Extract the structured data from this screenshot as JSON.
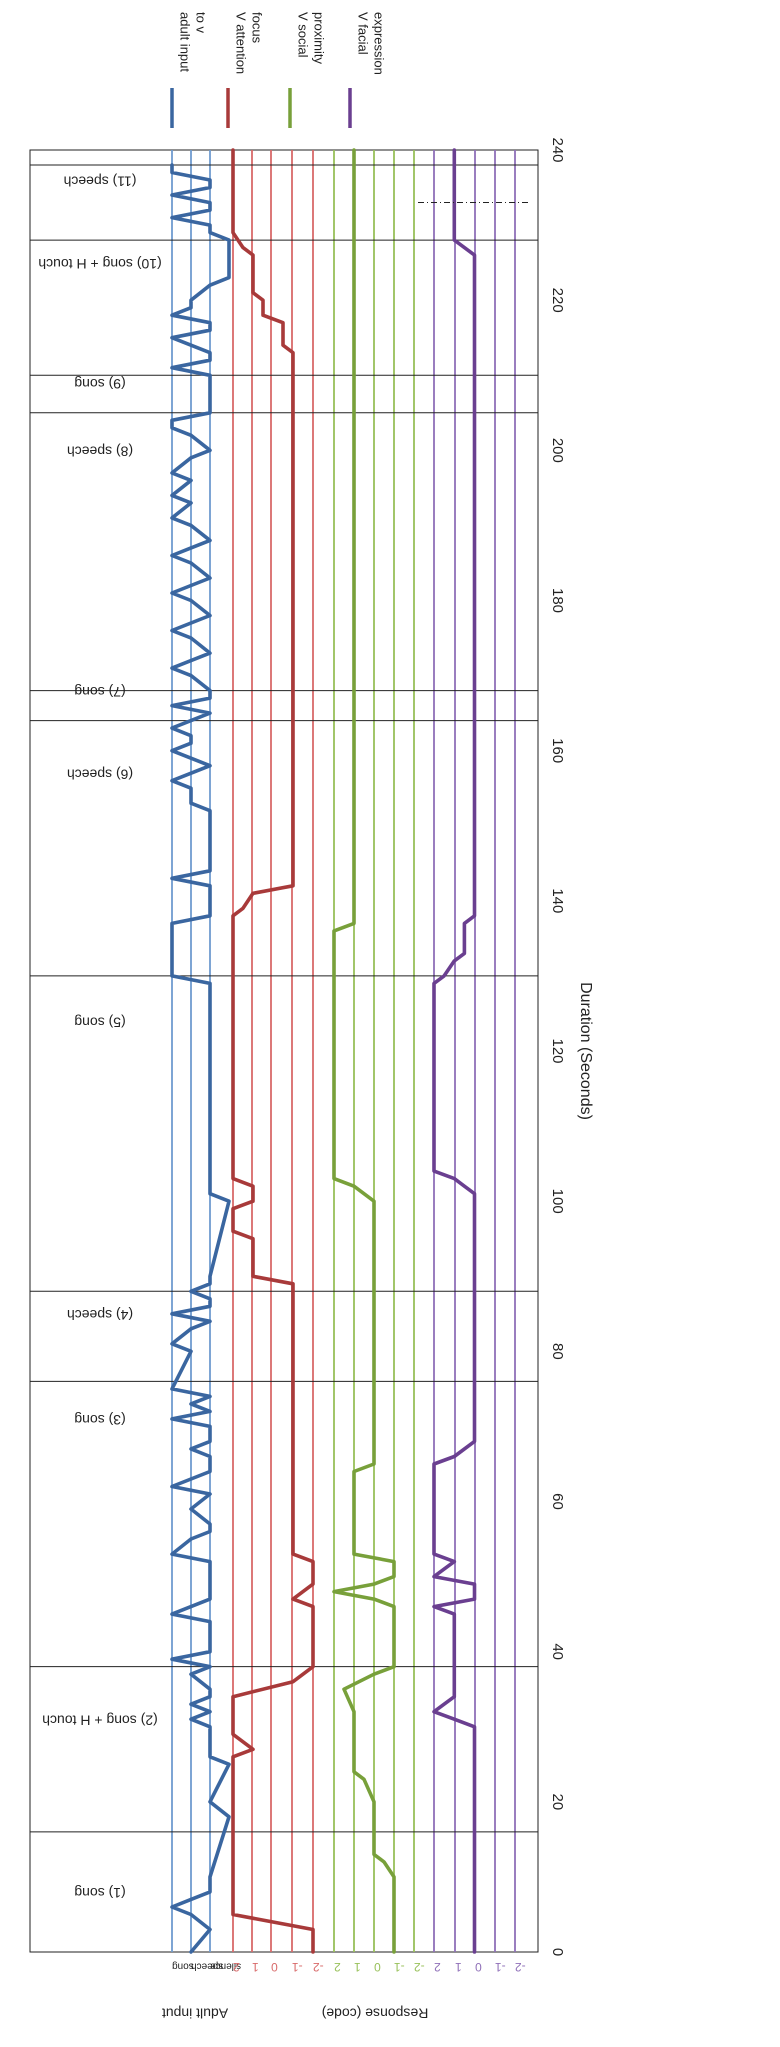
{
  "chart_data": {
    "type": "line",
    "orientation": "rotated-90-clockwise",
    "xlabel": "Duration (Seconds)",
    "xlim": [
      0,
      240
    ],
    "xticks": [
      "0",
      "20",
      "40",
      "60",
      "80",
      "100",
      "120",
      "140",
      "160",
      "180",
      "200",
      "220",
      "240"
    ],
    "grid": false,
    "legend_position": "top",
    "legend": [
      {
        "label": "adult input to v",
        "color": "#3a66a0"
      },
      {
        "label": "V attention focus",
        "color": "#a83a3a"
      },
      {
        "label": "V social proximity",
        "color": "#78a03a"
      },
      {
        "label": "V facial expression",
        "color": "#6a3f90"
      }
    ],
    "ylabel_groups": [
      {
        "label": "Adult input",
        "ticks": [
          "song",
          "speech",
          "silence"
        ]
      },
      {
        "label": "Response (code)",
        "ticks": []
      }
    ],
    "panels": [
      {
        "name": "adult input to v",
        "color": "#3a66a0",
        "guide_color": "#6f9bd0",
        "levels": [
          "song",
          "speech",
          "silence"
        ],
        "tick_labels": [
          "song",
          "speech",
          "silence"
        ],
        "x": [
          0,
          3,
          5,
          6,
          7,
          8,
          10,
          18,
          20,
          25,
          26,
          30,
          31,
          32,
          33,
          34,
          35,
          37,
          38,
          39,
          40,
          41,
          44,
          45,
          47,
          48,
          49,
          52,
          53,
          55,
          56,
          57,
          59,
          61,
          62,
          64,
          66,
          67,
          68,
          70,
          71,
          72,
          73,
          74,
          75,
          80,
          81,
          83,
          84,
          85,
          86,
          87,
          88,
          89,
          90,
          100,
          101,
          102,
          103,
          129,
          130,
          136,
          137,
          138,
          142,
          143,
          144,
          152,
          153,
          155,
          156,
          158,
          159,
          160,
          161,
          162,
          163,
          165,
          166,
          167,
          168,
          170,
          171,
          172,
          173,
          175,
          176,
          177,
          178,
          180,
          181,
          182,
          183,
          185,
          186,
          187,
          188,
          190,
          191,
          193,
          194,
          196,
          197,
          199,
          200,
          202,
          203,
          204,
          205,
          206,
          210,
          211,
          212,
          213,
          215,
          216,
          217,
          218,
          219,
          220,
          222,
          223,
          228,
          229,
          230,
          231,
          232,
          233,
          234,
          235,
          236,
          237,
          238
        ],
        "y": [
          1,
          0,
          1,
          2,
          1,
          0,
          0,
          -1,
          0,
          -1,
          0,
          0,
          1,
          0,
          1,
          0,
          0,
          1,
          0,
          2,
          0,
          0,
          0,
          2,
          0,
          0,
          0,
          0,
          2,
          1,
          0,
          0,
          1,
          0,
          2,
          0,
          0,
          1,
          0,
          0,
          2,
          0,
          1,
          0,
          2,
          1,
          2,
          1,
          0,
          2,
          0,
          0,
          1,
          0,
          0,
          -1,
          0,
          0,
          0,
          0,
          2,
          2,
          2,
          0,
          0,
          2,
          0,
          0,
          1,
          1,
          2,
          0,
          1,
          2,
          1,
          1,
          2,
          0,
          2,
          0,
          0,
          1,
          2,
          1,
          0,
          1,
          2,
          1,
          0,
          1,
          2,
          1,
          0,
          1,
          2,
          1,
          0,
          1,
          2,
          1,
          2,
          1,
          2,
          1,
          0,
          1,
          2,
          2,
          0,
          0,
          0,
          2,
          0,
          0,
          2,
          0,
          0,
          2,
          1,
          1,
          0,
          -1,
          -1,
          0,
          0,
          2,
          0,
          0,
          2,
          0,
          0,
          2,
          2
        ]
      },
      {
        "name": "V attention focus",
        "color": "#a83a3a",
        "guide_color": "#d86a6a",
        "levels": [
          2,
          1,
          0,
          -1,
          -2
        ],
        "tick_labels": [
          "2",
          "1",
          "0",
          "-1",
          "-2"
        ],
        "x": [
          0,
          3,
          5,
          26,
          27,
          29,
          34,
          36,
          37,
          38,
          39,
          46,
          47,
          48,
          49,
          50,
          51,
          52,
          53,
          89,
          90,
          95,
          96,
          99,
          100,
          102,
          103,
          105,
          106,
          138,
          139,
          141,
          142,
          213,
          214,
          217,
          218,
          220,
          221,
          226,
          227,
          229,
          240
        ],
        "y": [
          -2,
          -2,
          2,
          2,
          1,
          2,
          2,
          -1,
          -1.5,
          -2,
          -2,
          -2,
          -1,
          -1.5,
          -2,
          -2,
          -2,
          -2,
          -1,
          -1,
          1,
          1,
          2,
          2,
          1,
          1,
          2,
          2,
          2,
          2,
          1.5,
          1,
          -1,
          -1,
          -0.5,
          -0.5,
          0.5,
          0.5,
          1,
          1,
          1.5,
          2,
          2
        ]
      },
      {
        "name": "V social proximity",
        "color": "#78a03a",
        "guide_color": "#98c05a",
        "levels": [
          2,
          1,
          0,
          -1,
          -2
        ],
        "tick_labels": [
          "2",
          "1",
          "0",
          "-1",
          "-2"
        ],
        "x": [
          0,
          5,
          10,
          12,
          13,
          20,
          23,
          24,
          32,
          35,
          37,
          38,
          46,
          47,
          48,
          49,
          50,
          51,
          52,
          53,
          63,
          64,
          65,
          66,
          100,
          101,
          102,
          103,
          104,
          105,
          136,
          137,
          138,
          240
        ],
        "y": [
          -1,
          -1,
          -1,
          -0.5,
          0,
          0,
          0.5,
          1,
          1,
          1.5,
          0,
          -1,
          -1,
          0,
          2,
          0,
          -1,
          -1,
          -1,
          1,
          1,
          1,
          0,
          0,
          0,
          0.5,
          1,
          2,
          2,
          2,
          2,
          1,
          1,
          1
        ]
      },
      {
        "name": "V facial expression",
        "color": "#6a3f90",
        "guide_color": "#8f70b8",
        "levels": [
          2,
          1,
          0,
          -1,
          -2
        ],
        "tick_labels": [
          "2",
          "1",
          "0",
          "-1",
          "-2"
        ],
        "x": [
          0,
          30,
          31,
          32,
          33,
          34,
          35,
          36,
          45,
          46,
          47,
          48,
          49,
          50,
          51,
          52,
          53,
          54,
          55,
          65,
          66,
          68,
          70,
          101,
          102,
          103,
          104,
          105,
          129,
          130,
          132,
          133,
          136,
          137,
          138,
          226,
          227,
          228,
          230,
          240
        ],
        "y": [
          0,
          0,
          1,
          2,
          1.5,
          1,
          1,
          1,
          1,
          2,
          0,
          0,
          0,
          2,
          1.5,
          1,
          2,
          2,
          2,
          2,
          1,
          0,
          0,
          0,
          0.5,
          1,
          2,
          2,
          2,
          1.5,
          1,
          0.5,
          0.5,
          0.5,
          0,
          0,
          0.5,
          1,
          1,
          1
        ]
      }
    ],
    "event_lines": [
      16,
      38,
      76,
      88,
      130,
      164,
      168,
      205,
      210,
      228,
      238
    ],
    "event_annotations": [
      {
        "x": 8,
        "label": "(1) song"
      },
      {
        "x": 31,
        "label": "(2) song + H touch"
      },
      {
        "x": 71,
        "label": "(3) song"
      },
      {
        "x": 85,
        "label": "(4) speech"
      },
      {
        "x": 124,
        "label": "(5) song"
      },
      {
        "x": 157,
        "label": "(6) speech"
      },
      {
        "x": 168,
        "label": "(7) song"
      },
      {
        "x": 200,
        "label": "(8) speech"
      },
      {
        "x": 209,
        "label": "(9) song"
      },
      {
        "x": 225,
        "label": "(10) song + H touch"
      },
      {
        "x": 236,
        "label": "(11) speech"
      }
    ],
    "marker": {
      "x": 233,
      "panel": "V facial expression",
      "style": "dash-dot"
    }
  }
}
